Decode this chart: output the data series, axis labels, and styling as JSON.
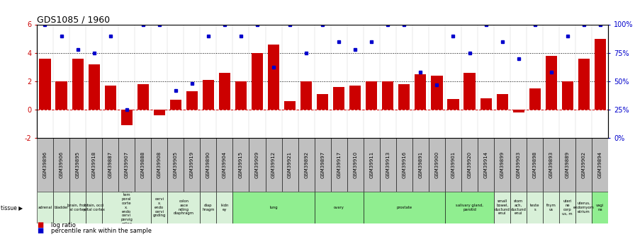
{
  "title": "GDS1085 / 1960",
  "samples": [
    "GSM39896",
    "GSM39906",
    "GSM39895",
    "GSM39918",
    "GSM39887",
    "GSM39907",
    "GSM39888",
    "GSM39908",
    "GSM39905",
    "GSM39919",
    "GSM39890",
    "GSM39904",
    "GSM39915",
    "GSM39909",
    "GSM39912",
    "GSM39921",
    "GSM39892",
    "GSM39897",
    "GSM39917",
    "GSM39910",
    "GSM39911",
    "GSM39913",
    "GSM39916",
    "GSM39891",
    "GSM39900",
    "GSM39901",
    "GSM39920",
    "GSM39914",
    "GSM39899",
    "GSM39903",
    "GSM39898",
    "GSM39893",
    "GSM39889",
    "GSM39902",
    "GSM39894"
  ],
  "log_ratio": [
    3.6,
    2.0,
    3.6,
    3.2,
    1.7,
    -1.1,
    1.8,
    -0.4,
    0.7,
    1.3,
    2.1,
    2.6,
    2.0,
    4.0,
    4.6,
    0.6,
    2.0,
    1.1,
    1.6,
    1.7,
    2.0,
    2.0,
    1.8,
    2.5,
    2.4,
    0.75,
    2.6,
    0.8,
    1.1,
    -0.2,
    1.5,
    3.8,
    2.0,
    3.6,
    5.0
  ],
  "percentile_raw": [
    100,
    90,
    78,
    75,
    90,
    25,
    100,
    100,
    42,
    48,
    90,
    100,
    90,
    100,
    62,
    100,
    75,
    100,
    85,
    78,
    85,
    100,
    100,
    58,
    47,
    90,
    75,
    100,
    85,
    70,
    100,
    58,
    90,
    100,
    100
  ],
  "ylim": [
    -2,
    6
  ],
  "yticks_left": [
    -2,
    0,
    2,
    4,
    6
  ],
  "yticks_right_pct": [
    0,
    25,
    50,
    75,
    100
  ],
  "bar_color": "#cc0000",
  "dot_color": "#0000cc",
  "bg_color": "#ffffff",
  "sample_box_color": "#c0c0c0",
  "tissue_groups": [
    {
      "label": "adrenal",
      "start": 0,
      "end": 1,
      "color": "#d8f0d8"
    },
    {
      "label": "bladder",
      "start": 1,
      "end": 2,
      "color": "#d8f0d8"
    },
    {
      "label": "brain, front\nal cortex",
      "start": 2,
      "end": 3,
      "color": "#d8f0d8"
    },
    {
      "label": "brain, occi\npital cortex",
      "start": 3,
      "end": 4,
      "color": "#d8f0d8"
    },
    {
      "label": "brain,\ntem\nporal\ncorte\nx,\nendo\ncervi\npervig\nnding",
      "start": 4,
      "end": 7,
      "color": "#d8f0d8"
    },
    {
      "label": "cervi\nx,\nendo\ncervi\ngnding",
      "start": 7,
      "end": 8,
      "color": "#d8f0d8"
    },
    {
      "label": "colon\nasce\nnding\ndiaphragm",
      "start": 8,
      "end": 10,
      "color": "#d8f0d8"
    },
    {
      "label": "diap\nhragm",
      "start": 10,
      "end": 11,
      "color": "#d8f0d8"
    },
    {
      "label": "kidn\ney",
      "start": 11,
      "end": 12,
      "color": "#d8f0d8"
    },
    {
      "label": "lung",
      "start": 12,
      "end": 17,
      "color": "#90ee90"
    },
    {
      "label": "ovary",
      "start": 17,
      "end": 20,
      "color": "#90ee90"
    },
    {
      "label": "prostate",
      "start": 20,
      "end": 25,
      "color": "#90ee90"
    },
    {
      "label": "salivary gland,\nparotid",
      "start": 25,
      "end": 28,
      "color": "#90ee90"
    },
    {
      "label": "small\nbowel,\nductund\nenui",
      "start": 28,
      "end": 29,
      "color": "#d8f0d8"
    },
    {
      "label": "stom\nach,\nductund\nenui",
      "start": 29,
      "end": 30,
      "color": "#d8f0d8"
    },
    {
      "label": "teste\ns",
      "start": 30,
      "end": 31,
      "color": "#d8f0d8"
    },
    {
      "label": "thym\nus",
      "start": 31,
      "end": 32,
      "color": "#d8f0d8"
    },
    {
      "label": "uteri\nne\ncorp\nus, m",
      "start": 32,
      "end": 33,
      "color": "#d8f0d8"
    },
    {
      "label": "uterus,\nendomyom\netrium",
      "start": 33,
      "end": 34,
      "color": "#d8f0d8"
    },
    {
      "label": "vagi\nna",
      "start": 34,
      "end": 35,
      "color": "#90ee90"
    }
  ]
}
